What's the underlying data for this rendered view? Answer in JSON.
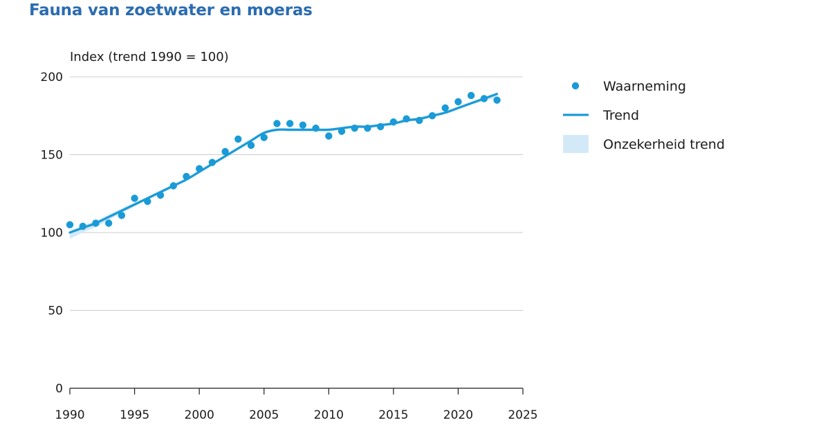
{
  "chart_data": {
    "type": "line",
    "title": "Fauna van zoetwater en moeras",
    "ylabel": "Index (trend 1990 = 100)",
    "xlabel": "",
    "xlim": [
      1990,
      2025
    ],
    "ylim": [
      0,
      200
    ],
    "x_ticks": [
      1990,
      1995,
      2000,
      2005,
      2010,
      2015,
      2020,
      2025
    ],
    "y_ticks": [
      0,
      50,
      100,
      150,
      200
    ],
    "grid": "horizontal",
    "legend_position": "right",
    "colors": {
      "observation": "#1a9bd7",
      "trend": "#1a9bd7",
      "uncertainty": "#d3e9f7",
      "title": "#2b6cb0",
      "grid": "#cccccc"
    },
    "legend": [
      {
        "key": "observation",
        "label": "Waarneming"
      },
      {
        "key": "trend",
        "label": "Trend"
      },
      {
        "key": "uncertainty",
        "label": "Onzekerheid trend"
      }
    ],
    "observations": {
      "x": [
        1990,
        1991,
        1992,
        1993,
        1994,
        1995,
        1996,
        1997,
        1998,
        1999,
        2000,
        2001,
        2002,
        2003,
        2004,
        2005,
        2006,
        2007,
        2008,
        2009,
        2010,
        2011,
        2012,
        2013,
        2014,
        2015,
        2016,
        2017,
        2018,
        2019,
        2020,
        2021,
        2022,
        2023
      ],
      "y": [
        105,
        104,
        106,
        106,
        111,
        122,
        120,
        124,
        130,
        136,
        141,
        145,
        152,
        160,
        156,
        161,
        170,
        170,
        169,
        167,
        162,
        165,
        167,
        167,
        168,
        171,
        173,
        172,
        175,
        180,
        184,
        188,
        186,
        185
      ]
    },
    "trend": {
      "x": [
        1990,
        1991,
        1992,
        1993,
        1994,
        1995,
        1996,
        1997,
        1998,
        1999,
        2000,
        2001,
        2002,
        2003,
        2004,
        2005,
        2006,
        2007,
        2008,
        2009,
        2010,
        2011,
        2012,
        2013,
        2014,
        2015,
        2016,
        2017,
        2018,
        2019,
        2020,
        2021,
        2022,
        2023
      ],
      "y": [
        100,
        103,
        106,
        110,
        114,
        118,
        122,
        126,
        130,
        134,
        139,
        144,
        149,
        154,
        159,
        164,
        166,
        166,
        166,
        166,
        166,
        167,
        168,
        168,
        169,
        170,
        172,
        173,
        175,
        177,
        180,
        183,
        186,
        189
      ],
      "lower": [
        96,
        100,
        103.5,
        108,
        112.5,
        116.8,
        121,
        125,
        129,
        133,
        138,
        143,
        148,
        153,
        158,
        163,
        165,
        165,
        165,
        165,
        165,
        166,
        167,
        167,
        168,
        169,
        171,
        172,
        174,
        176,
        179,
        182,
        184.5,
        186.5
      ],
      "upper": [
        101,
        104.5,
        107.5,
        111.5,
        115.5,
        119.2,
        123,
        127,
        131,
        135,
        140,
        145,
        150,
        155,
        160,
        165,
        167,
        167,
        167,
        167,
        167,
        168,
        169,
        169,
        170,
        171,
        173,
        174,
        176,
        178,
        181,
        184,
        187,
        190
      ]
    }
  }
}
